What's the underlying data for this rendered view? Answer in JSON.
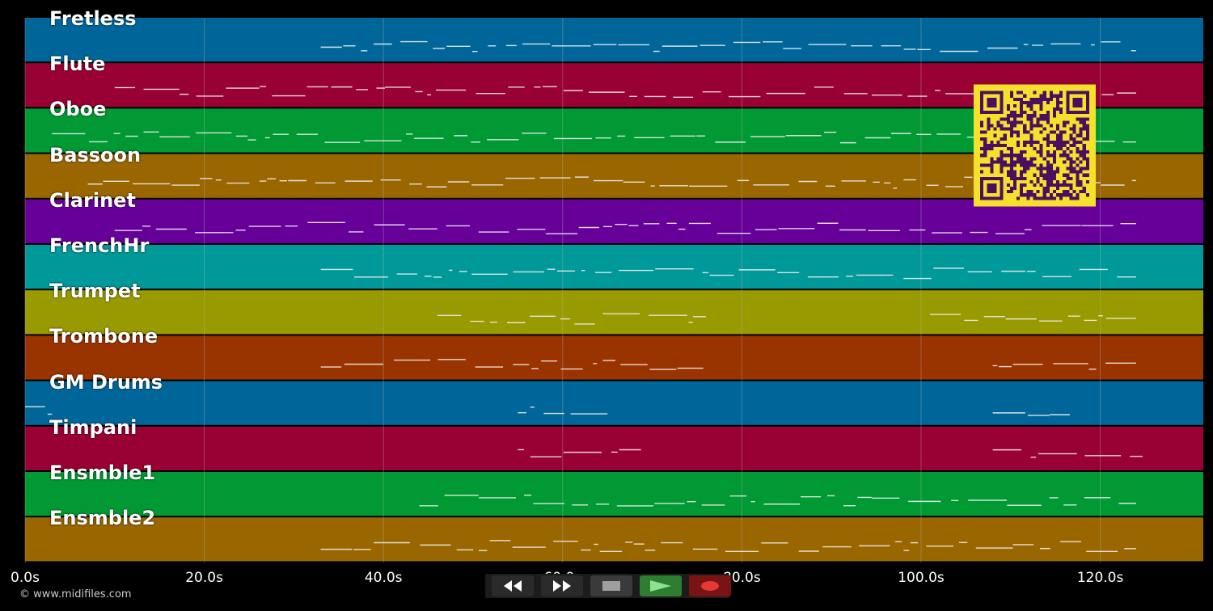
{
  "tracks": [
    {
      "name": "Fretless",
      "color": "#006699"
    },
    {
      "name": "Flute",
      "color": "#990033"
    },
    {
      "name": "Oboe",
      "color": "#009933"
    },
    {
      "name": "Bassoon",
      "color": "#996600"
    },
    {
      "name": "Clarinet",
      "color": "#660099"
    },
    {
      "name": "FrenchHr",
      "color": "#009999"
    },
    {
      "name": "Trumpet",
      "color": "#999900"
    },
    {
      "name": "Trombone",
      "color": "#993300"
    },
    {
      "name": "GM Drums",
      "color": "#006699"
    },
    {
      "name": "Timpani",
      "color": "#990033"
    },
    {
      "name": "Ensmble1",
      "color": "#009933"
    },
    {
      "name": "Ensmble2",
      "color": "#996600"
    }
  ],
  "timeline": {
    "max_seconds": 131.5,
    "ticks": [
      {
        "value": 0,
        "label": "0.0s"
      },
      {
        "value": 20,
        "label": "20.0s"
      },
      {
        "value": 40,
        "label": "40.0s"
      },
      {
        "value": 60,
        "label": "60.0s"
      },
      {
        "value": 80,
        "label": "80.0s"
      },
      {
        "value": 100,
        "label": "100.0s"
      },
      {
        "value": 120,
        "label": "120.0s"
      }
    ]
  },
  "footer": {
    "copyright": "© www.midifiles.com"
  },
  "controls": {
    "rewind": "rewind-icon",
    "fast_forward": "fast-forward-icon",
    "stop": "stop-icon",
    "play": "play-icon",
    "record": "record-icon"
  },
  "colors": {
    "background": "#000000",
    "grid": "#bbbbbb",
    "note": "#eeeeee",
    "qr_background": "#f5e12b",
    "qr_module": "#4a1060",
    "play_button": "#2e7d32",
    "record_button": "#7a1414"
  }
}
